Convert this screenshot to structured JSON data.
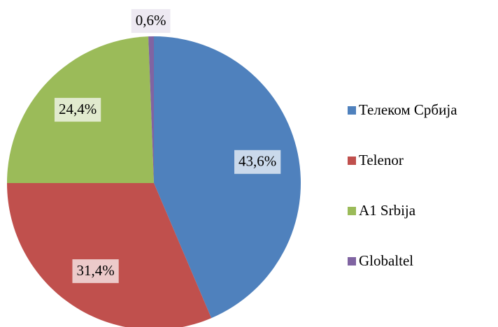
{
  "chart_data": {
    "type": "pie",
    "categories": [
      "Телеком Србија",
      "Telenor",
      "A1 Srbija",
      "Globaltel"
    ],
    "values": [
      43.6,
      31.4,
      24.4,
      0.6
    ],
    "value_labels": [
      "43,6%",
      "31,4%",
      "24,4%",
      "0,6%"
    ],
    "colors": [
      "#4f81bd",
      "#c0504d",
      "#9bbb59",
      "#8064a2"
    ],
    "legend": "right"
  }
}
